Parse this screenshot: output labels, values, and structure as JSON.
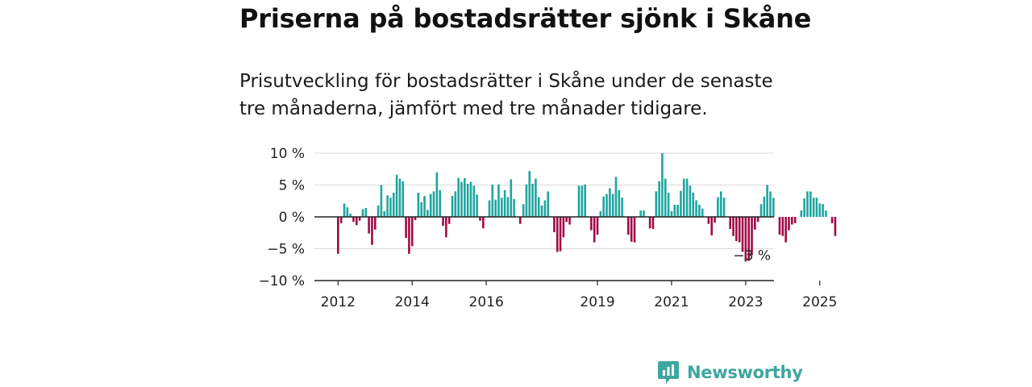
{
  "title": "Priserna på bostadsrätter sjönk i Skåne",
  "subtitle": "Prisutveckling för bostadsrätter i Skåne under de senaste tre månaderna, jämfört med tre månader tidigare.",
  "brand": {
    "name": "Newsworthy",
    "icon": "newsworthy-logo-icon",
    "color": "#3ea6a0"
  },
  "colors": {
    "positive": "#1fa59f",
    "negative": "#a10a46",
    "grid": "#d9d9d9",
    "zero_line": "#222222"
  },
  "chart_data": {
    "type": "bar",
    "ylim": [
      -10,
      10
    ],
    "y_ticks": [
      {
        "value": 10,
        "label": "10 %"
      },
      {
        "value": 5,
        "label": "5 %"
      },
      {
        "value": 0,
        "label": "0 %"
      },
      {
        "value": -5,
        "label": "−5 %"
      },
      {
        "value": -10,
        "label": "−10 %"
      }
    ],
    "x_ticks": [
      {
        "date": "2012-01",
        "label": "2012"
      },
      {
        "date": "2014-01",
        "label": "2014"
      },
      {
        "date": "2016-01",
        "label": "2016"
      },
      {
        "date": "2019-01",
        "label": "2019"
      },
      {
        "date": "2021-01",
        "label": "2021"
      },
      {
        "date": "2023-01",
        "label": "2023"
      },
      {
        "date": "2025-01",
        "label": "2025"
      }
    ],
    "start": "2012-01",
    "values": [
      -5.8,
      -1,
      2.1,
      1.5,
      0.5,
      -0.8,
      -1.3,
      -0.6,
      1.2,
      1.4,
      -2.6,
      -4.4,
      -2,
      1.8,
      5,
      0.9,
      3.4,
      3,
      3.8,
      6.6,
      6,
      5.6,
      -3.3,
      -5.8,
      -4.6,
      -0.5,
      3.8,
      2.3,
      3.3,
      1.1,
      3.6,
      4,
      7,
      4.2,
      -1.4,
      -3.2,
      -1.1,
      3.3,
      4,
      6.1,
      5.5,
      6.1,
      5.2,
      5.5,
      4.9,
      3.5,
      -0.6,
      -1.8,
      0,
      2.6,
      5.1,
      2.7,
      5.1,
      3,
      4.2,
      3.1,
      5.9,
      2.8,
      0,
      -1.1,
      2,
      5.1,
      7.2,
      5.2,
      6,
      3.1,
      1.8,
      2.6,
      4,
      0,
      -2.4,
      -5.5,
      -5.4,
      -3.2,
      -0.8,
      -1.2,
      0,
      0,
      4.9,
      4.9,
      5.1,
      0,
      -2.1,
      -4,
      -2.8,
      0.9,
      3.2,
      3.6,
      4.5,
      3.6,
      6.3,
      4.2,
      3,
      0,
      -2.8,
      -3.9,
      -4,
      0,
      1,
      1,
      0,
      -1.8,
      -1.9,
      4,
      5.6,
      10,
      6,
      3.8,
      0.9,
      1.9,
      1.9,
      4.1,
      6,
      6,
      4.9,
      3.8,
      2.6,
      1.9,
      1.3,
      0,
      -1.1,
      -2.9,
      -0.9,
      3.1,
      4,
      3,
      0,
      -1.9,
      -3,
      -3.8,
      -4,
      -5.5,
      -7,
      -6.9,
      -6,
      -2,
      -0.8,
      2,
      3.2,
      5,
      4,
      3,
      0,
      -2.8,
      -3,
      -4,
      -2.1,
      -1.2,
      -1,
      0,
      1,
      2.9,
      4,
      4,
      3,
      3,
      2.1,
      2,
      1,
      0,
      -1,
      -3
    ]
  },
  "last_value_label": "−3 %"
}
